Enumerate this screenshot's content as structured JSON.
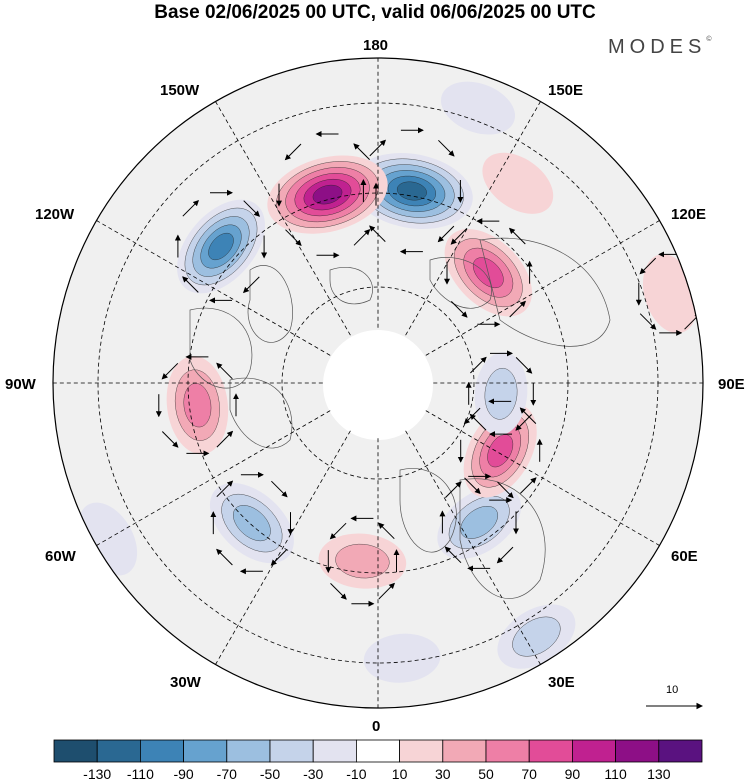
{
  "title": "Base 02/06/2025 00 UTC, valid 06/06/2025 00 UTC",
  "brand": "MODES",
  "brand_mark": "©",
  "longitude_labels": {
    "top": "180",
    "bottom": "0",
    "left": "90W",
    "right": "90E",
    "upper_left_1": "150W",
    "upper_left_2": "120W",
    "upper_right_1": "150E",
    "upper_right_2": "120E",
    "lower_left_1": "60W",
    "lower_left_2": "30W",
    "lower_right_1": "60E",
    "lower_right_2": "30E"
  },
  "vector_scale_label": "10",
  "colorbar": {
    "ticks": [
      "-130",
      "-110",
      "-90",
      "-70",
      "-50",
      "-30",
      "-10",
      "10",
      "30",
      "50",
      "70",
      "90",
      "110",
      "130"
    ],
    "colors": [
      "#1e4e6e",
      "#2a6892",
      "#3d83b6",
      "#66a2cf",
      "#9cbfe0",
      "#c5d3ea",
      "#e3e3f0",
      "#ffffff",
      "#f7d4d6",
      "#f2a9b6",
      "#ee7fa6",
      "#e24c98",
      "#c02190",
      "#8d0f86",
      "#5a1280"
    ]
  },
  "anomaly_cells": [
    {
      "lon": 170,
      "r": 0.6,
      "v": -125
    },
    {
      "lon": 195,
      "r": 0.6,
      "v": 125
    },
    {
      "lon": 229,
      "r": 0.64,
      "v": -95
    },
    {
      "lon": 277,
      "r": 0.56,
      "v": 70
    },
    {
      "lon": 318,
      "r": 0.58,
      "v": -70
    },
    {
      "lon": 355,
      "r": 0.55,
      "v": 45
    },
    {
      "lon": 36,
      "r": 0.53,
      "v": -60
    },
    {
      "lon": 61,
      "r": 0.43,
      "v": 75
    },
    {
      "lon": 85,
      "r": 0.38,
      "v": -35
    },
    {
      "lon": 107,
      "r": 0.94,
      "v": 30
    },
    {
      "lon": 135,
      "r": 0.48,
      "v": 85
    },
    {
      "lon": 145,
      "r": 0.75,
      "v": 25
    },
    {
      "lon": 32,
      "r": 0.92,
      "v": -40
    },
    {
      "lon": 300,
      "r": 0.96,
      "v": -25
    },
    {
      "lon": 5,
      "r": 0.85,
      "v": -20
    },
    {
      "lon": 160,
      "r": 0.9,
      "v": -20
    }
  ]
}
